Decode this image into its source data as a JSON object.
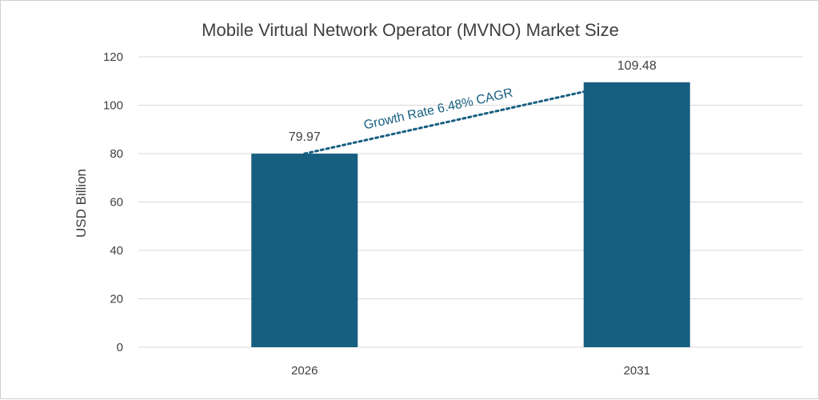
{
  "chart_data": {
    "type": "bar",
    "title": "Mobile Virtual Network Operator (MVNO) Market Size",
    "xlabel": "",
    "ylabel": "USD Billion",
    "categories": [
      "2026",
      "2031"
    ],
    "values": [
      79.97,
      109.48
    ],
    "data_labels": [
      "79.97",
      "109.48"
    ],
    "ylim": [
      0,
      120
    ],
    "yticks": [
      0,
      20,
      40,
      60,
      80,
      100,
      120
    ],
    "grid": true,
    "legend": "none",
    "bar_color": "#175f80",
    "annotation": {
      "text": "Growth Rate 6.48% CAGR",
      "color": "#175f80",
      "style": "dotted trend line from 2026 bar top to 2031 bar top"
    }
  }
}
